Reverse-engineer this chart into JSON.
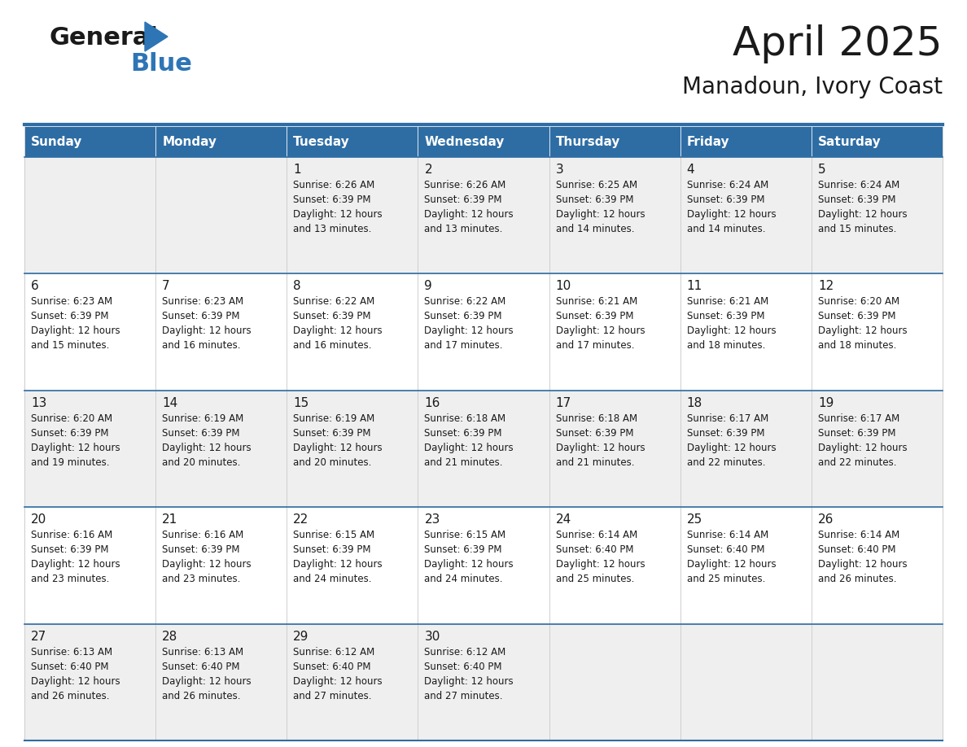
{
  "title": "April 2025",
  "subtitle": "Manadoun, Ivory Coast",
  "header_bg": "#2E6DA4",
  "header_text_color": "#FFFFFF",
  "cell_bg_even": "#EFEFEF",
  "cell_bg_odd": "#FFFFFF",
  "row_separator_color": "#2E6DA4",
  "cell_border_color": "#CCCCCC",
  "day_headers": [
    "Sunday",
    "Monday",
    "Tuesday",
    "Wednesday",
    "Thursday",
    "Friday",
    "Saturday"
  ],
  "days_data": [
    {
      "day": 1,
      "col": 2,
      "row": 0,
      "sunrise": "6:26 AM",
      "sunset": "6:39 PM",
      "daylight_hours": 12,
      "daylight_minutes": 13
    },
    {
      "day": 2,
      "col": 3,
      "row": 0,
      "sunrise": "6:26 AM",
      "sunset": "6:39 PM",
      "daylight_hours": 12,
      "daylight_minutes": 13
    },
    {
      "day": 3,
      "col": 4,
      "row": 0,
      "sunrise": "6:25 AM",
      "sunset": "6:39 PM",
      "daylight_hours": 12,
      "daylight_minutes": 14
    },
    {
      "day": 4,
      "col": 5,
      "row": 0,
      "sunrise": "6:24 AM",
      "sunset": "6:39 PM",
      "daylight_hours": 12,
      "daylight_minutes": 14
    },
    {
      "day": 5,
      "col": 6,
      "row": 0,
      "sunrise": "6:24 AM",
      "sunset": "6:39 PM",
      "daylight_hours": 12,
      "daylight_minutes": 15
    },
    {
      "day": 6,
      "col": 0,
      "row": 1,
      "sunrise": "6:23 AM",
      "sunset": "6:39 PM",
      "daylight_hours": 12,
      "daylight_minutes": 15
    },
    {
      "day": 7,
      "col": 1,
      "row": 1,
      "sunrise": "6:23 AM",
      "sunset": "6:39 PM",
      "daylight_hours": 12,
      "daylight_minutes": 16
    },
    {
      "day": 8,
      "col": 2,
      "row": 1,
      "sunrise": "6:22 AM",
      "sunset": "6:39 PM",
      "daylight_hours": 12,
      "daylight_minutes": 16
    },
    {
      "day": 9,
      "col": 3,
      "row": 1,
      "sunrise": "6:22 AM",
      "sunset": "6:39 PM",
      "daylight_hours": 12,
      "daylight_minutes": 17
    },
    {
      "day": 10,
      "col": 4,
      "row": 1,
      "sunrise": "6:21 AM",
      "sunset": "6:39 PM",
      "daylight_hours": 12,
      "daylight_minutes": 17
    },
    {
      "day": 11,
      "col": 5,
      "row": 1,
      "sunrise": "6:21 AM",
      "sunset": "6:39 PM",
      "daylight_hours": 12,
      "daylight_minutes": 18
    },
    {
      "day": 12,
      "col": 6,
      "row": 1,
      "sunrise": "6:20 AM",
      "sunset": "6:39 PM",
      "daylight_hours": 12,
      "daylight_minutes": 18
    },
    {
      "day": 13,
      "col": 0,
      "row": 2,
      "sunrise": "6:20 AM",
      "sunset": "6:39 PM",
      "daylight_hours": 12,
      "daylight_minutes": 19
    },
    {
      "day": 14,
      "col": 1,
      "row": 2,
      "sunrise": "6:19 AM",
      "sunset": "6:39 PM",
      "daylight_hours": 12,
      "daylight_minutes": 20
    },
    {
      "day": 15,
      "col": 2,
      "row": 2,
      "sunrise": "6:19 AM",
      "sunset": "6:39 PM",
      "daylight_hours": 12,
      "daylight_minutes": 20
    },
    {
      "day": 16,
      "col": 3,
      "row": 2,
      "sunrise": "6:18 AM",
      "sunset": "6:39 PM",
      "daylight_hours": 12,
      "daylight_minutes": 21
    },
    {
      "day": 17,
      "col": 4,
      "row": 2,
      "sunrise": "6:18 AM",
      "sunset": "6:39 PM",
      "daylight_hours": 12,
      "daylight_minutes": 21
    },
    {
      "day": 18,
      "col": 5,
      "row": 2,
      "sunrise": "6:17 AM",
      "sunset": "6:39 PM",
      "daylight_hours": 12,
      "daylight_minutes": 22
    },
    {
      "day": 19,
      "col": 6,
      "row": 2,
      "sunrise": "6:17 AM",
      "sunset": "6:39 PM",
      "daylight_hours": 12,
      "daylight_minutes": 22
    },
    {
      "day": 20,
      "col": 0,
      "row": 3,
      "sunrise": "6:16 AM",
      "sunset": "6:39 PM",
      "daylight_hours": 12,
      "daylight_minutes": 23
    },
    {
      "day": 21,
      "col": 1,
      "row": 3,
      "sunrise": "6:16 AM",
      "sunset": "6:39 PM",
      "daylight_hours": 12,
      "daylight_minutes": 23
    },
    {
      "day": 22,
      "col": 2,
      "row": 3,
      "sunrise": "6:15 AM",
      "sunset": "6:39 PM",
      "daylight_hours": 12,
      "daylight_minutes": 24
    },
    {
      "day": 23,
      "col": 3,
      "row": 3,
      "sunrise": "6:15 AM",
      "sunset": "6:39 PM",
      "daylight_hours": 12,
      "daylight_minutes": 24
    },
    {
      "day": 24,
      "col": 4,
      "row": 3,
      "sunrise": "6:14 AM",
      "sunset": "6:40 PM",
      "daylight_hours": 12,
      "daylight_minutes": 25
    },
    {
      "day": 25,
      "col": 5,
      "row": 3,
      "sunrise": "6:14 AM",
      "sunset": "6:40 PM",
      "daylight_hours": 12,
      "daylight_minutes": 25
    },
    {
      "day": 26,
      "col": 6,
      "row": 3,
      "sunrise": "6:14 AM",
      "sunset": "6:40 PM",
      "daylight_hours": 12,
      "daylight_minutes": 26
    },
    {
      "day": 27,
      "col": 0,
      "row": 4,
      "sunrise": "6:13 AM",
      "sunset": "6:40 PM",
      "daylight_hours": 12,
      "daylight_minutes": 26
    },
    {
      "day": 28,
      "col": 1,
      "row": 4,
      "sunrise": "6:13 AM",
      "sunset": "6:40 PM",
      "daylight_hours": 12,
      "daylight_minutes": 26
    },
    {
      "day": 29,
      "col": 2,
      "row": 4,
      "sunrise": "6:12 AM",
      "sunset": "6:40 PM",
      "daylight_hours": 12,
      "daylight_minutes": 27
    },
    {
      "day": 30,
      "col": 3,
      "row": 4,
      "sunrise": "6:12 AM",
      "sunset": "6:40 PM",
      "daylight_hours": 12,
      "daylight_minutes": 27
    }
  ],
  "num_rows": 5,
  "logo_general_color": "#1a1a1a",
  "logo_blue_color": "#2E75B6",
  "logo_triangle_color": "#2E75B6",
  "title_fontsize": 36,
  "subtitle_fontsize": 20,
  "header_fontsize": 11,
  "day_num_fontsize": 11,
  "cell_text_fontsize": 8.5
}
